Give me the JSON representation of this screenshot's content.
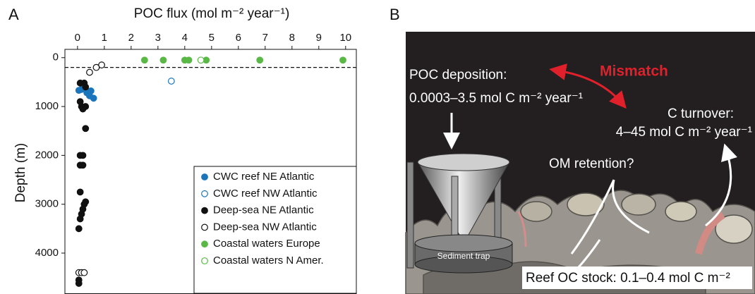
{
  "panel_labels": [
    "A",
    "B"
  ],
  "chart_data": {
    "type": "scatter",
    "xlabel": "POC flux (mol m⁻² year⁻¹)",
    "ylabel": "Depth (m)",
    "xlim": [
      -0.47,
      10.4
    ],
    "xticks": [
      0,
      1,
      2,
      3,
      4,
      5,
      6,
      7,
      8,
      9,
      10
    ],
    "ylim": [
      -170,
      4830
    ],
    "yticks": [
      0,
      1000,
      2000,
      3000,
      4000
    ],
    "y_inverted": true,
    "hline": 200,
    "legend": "lower right",
    "series": [
      {
        "name": "CWC reef NE Atlantic",
        "color": "#1b75bb",
        "filled": true,
        "x": [
          0.05,
          0.15,
          0.35,
          0.5,
          0.45,
          0.6
        ],
        "values": [
          670,
          650,
          720,
          680,
          780,
          830
        ]
      },
      {
        "name": "CWC reef NW Atlantic",
        "color": "#1b75bb",
        "filled": false,
        "x": [
          3.5
        ],
        "values": [
          480
        ]
      },
      {
        "name": "Deep-sea NE Atlantic",
        "color": "#111111",
        "filled": true,
        "x": [
          0.1,
          0.25,
          0.3,
          0.1,
          0.15,
          0.3,
          0.2,
          0.3,
          0.1,
          0.2,
          0.1,
          0.2,
          0.1,
          0.3,
          0.25,
          0.2,
          0.15,
          0.1,
          0.05,
          0.05,
          0.05
        ],
        "values": [
          520,
          520,
          600,
          900,
          1000,
          1000,
          1050,
          1450,
          2000,
          2000,
          2200,
          2200,
          2750,
          2950,
          3000,
          3100,
          3200,
          3300,
          3500,
          4550,
          4620
        ]
      },
      {
        "name": "Deep-sea NW Atlantic",
        "color": "#111111",
        "filled": false,
        "x": [
          0.9,
          0.7,
          0.45,
          0.05,
          0.15,
          0.25
        ],
        "values": [
          150,
          200,
          300,
          4400,
          4400,
          4400
        ]
      },
      {
        "name": "Coastal waters Europe",
        "color": "#5ab946",
        "filled": true,
        "x": [
          2.5,
          3.2,
          4.0,
          4.15,
          4.8,
          6.8,
          9.9
        ],
        "values": [
          50,
          50,
          50,
          50,
          50,
          50,
          50
        ]
      },
      {
        "name": "Coastal waters N Amer.",
        "color": "#5ab946",
        "filled": false,
        "x": [
          4.6
        ],
        "values": [
          50
        ]
      }
    ]
  },
  "illustration": {
    "poc_deposition": "POC deposition:",
    "poc_range": "0.0003–3.5 mol C m⁻² year⁻¹",
    "mismatch": "Mismatch",
    "c_turnover": "C turnover:",
    "c_turnover_range": "4–45 mol C m⁻² year⁻¹",
    "om_retention": "OM retention?",
    "sediment_trap": "Sediment trap",
    "reef_stock": "Reef OC stock: 0.1–0.4 mol C m⁻²"
  }
}
